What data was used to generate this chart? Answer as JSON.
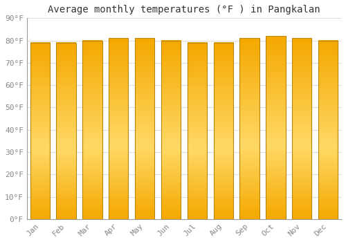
{
  "title": "Average monthly temperatures (°F ) in Pangkalan",
  "months": [
    "Jan",
    "Feb",
    "Mar",
    "Apr",
    "May",
    "Jun",
    "Jul",
    "Aug",
    "Sep",
    "Oct",
    "Nov",
    "Dec"
  ],
  "values": [
    79,
    79,
    80,
    81,
    81,
    80,
    79,
    79,
    81,
    82,
    81,
    80
  ],
  "bar_color_top": "#F5A800",
  "bar_color_mid": "#FFD966",
  "bar_color_bot": "#F5A800",
  "bar_edge_color": "#B8860B",
  "background_color": "#FFFFFF",
  "plot_bg_color": "#FFFFFF",
  "grid_color": "#DDDDDD",
  "yticks": [
    0,
    10,
    20,
    30,
    40,
    50,
    60,
    70,
    80,
    90
  ],
  "ytick_labels": [
    "0°F",
    "10°F",
    "20°F",
    "30°F",
    "40°F",
    "50°F",
    "60°F",
    "70°F",
    "80°F",
    "90°F"
  ],
  "ylim": [
    0,
    90
  ],
  "title_fontsize": 10,
  "tick_fontsize": 8,
  "font_family": "monospace",
  "tick_color": "#888888",
  "bar_width": 0.75
}
